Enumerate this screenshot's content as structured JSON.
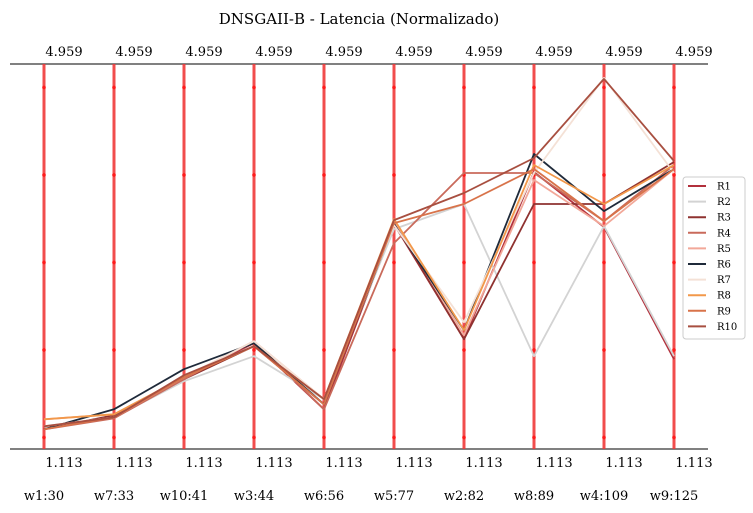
{
  "chart_data": {
    "type": "line",
    "title": "DNSGAII-B - Latencia (Normalizado)",
    "categories": [
      "w1:30",
      "w7:33",
      "w10:41",
      "w3:44",
      "w6:56",
      "w5:77",
      "w2:82",
      "w8:89",
      "w4:109",
      "w9:125"
    ],
    "axis_top_labels": [
      "4.959",
      "4.959",
      "4.959",
      "4.959",
      "4.959",
      "4.959",
      "4.959",
      "4.959",
      "4.959",
      "4.959"
    ],
    "axis_bottom_labels": [
      "1.113",
      "1.113",
      "1.113",
      "1.113",
      "1.113",
      "1.113",
      "1.113",
      "1.113",
      "1.113",
      "1.113"
    ],
    "ylim": [
      1.113,
      4.959
    ],
    "axis_color": "#f03a3a",
    "legend_position": "right",
    "series": [
      {
        "name": "R1",
        "color": "#b2303c",
        "values": [
          1.31,
          1.43,
          1.83,
          2.17,
          1.51,
          3.36,
          2.21,
          3.88,
          3.33,
          2.01
        ]
      },
      {
        "name": "R2",
        "color": "#d3d3d3",
        "values": [
          1.34,
          1.43,
          1.79,
          2.04,
          1.61,
          3.31,
          3.56,
          2.04,
          3.34,
          2.04
        ]
      },
      {
        "name": "R3",
        "color": "#8f3230",
        "values": [
          1.31,
          1.45,
          1.81,
          2.14,
          1.56,
          3.37,
          2.21,
          3.56,
          3.56,
          3.98
        ]
      },
      {
        "name": "R4",
        "color": "#c96a5b",
        "values": [
          1.31,
          1.42,
          1.81,
          2.19,
          1.51,
          3.17,
          3.87,
          3.87,
          3.39,
          3.95
        ]
      },
      {
        "name": "R5",
        "color": "#f2a899",
        "values": [
          1.41,
          1.46,
          1.83,
          2.19,
          1.61,
          3.4,
          2.25,
          3.8,
          3.34,
          3.91
        ]
      },
      {
        "name": "R6",
        "color": "#1f2a3a",
        "values": [
          1.31,
          1.51,
          1.91,
          2.17,
          1.56,
          3.36,
          2.3,
          4.06,
          3.49,
          3.91
        ]
      },
      {
        "name": "R7",
        "color": "#f4e1d6",
        "values": [
          1.34,
          1.43,
          1.83,
          2.19,
          1.61,
          3.35,
          2.38,
          3.87,
          4.82,
          3.87
        ]
      },
      {
        "name": "R8",
        "color": "#f2984a",
        "values": [
          1.41,
          1.46,
          1.83,
          2.14,
          1.61,
          3.41,
          2.3,
          3.95,
          3.56,
          3.95
        ]
      },
      {
        "name": "R9",
        "color": "#d8734a",
        "values": [
          1.31,
          1.43,
          1.83,
          2.14,
          1.56,
          3.37,
          3.56,
          3.91,
          3.39,
          3.91
        ]
      },
      {
        "name": "R10",
        "color": "#a84f40",
        "values": [
          1.34,
          1.43,
          1.85,
          2.14,
          1.61,
          3.4,
          3.67,
          4.02,
          4.81,
          3.99
        ]
      }
    ]
  }
}
